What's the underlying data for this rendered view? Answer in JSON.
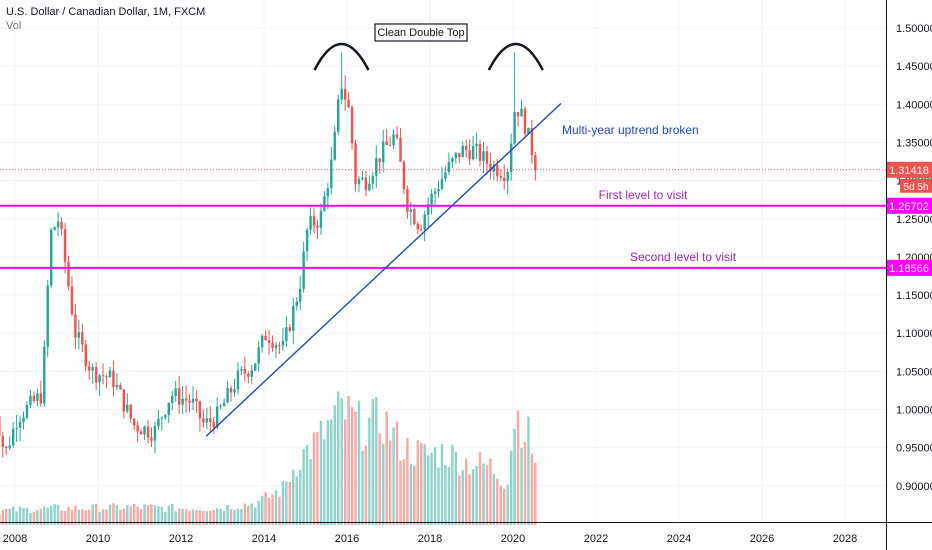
{
  "header": {
    "symbol": "U.S. Dollar / Canadian Dollar, 1M, FXCM",
    "volume_label": "Vol"
  },
  "colors": {
    "up": "#26a69a",
    "down": "#ef5350",
    "up_vol": "#8fd3cc",
    "down_vol": "#f7a9a7",
    "magenta": "#ff00ff",
    "trendline": "#1e4db7",
    "annotation_blue": "#1e4db7",
    "annotation_purple": "#9c27b0",
    "price_line": "#ef5350",
    "grid": "#f0f3fa"
  },
  "chart_data": {
    "type": "candlestick",
    "title": "U.S. Dollar / Canadian Dollar, 1M, FXCM",
    "x_ticks": [
      "2008",
      "2010",
      "2012",
      "2014",
      "2016",
      "2018",
      "2020",
      "2022",
      "2024",
      "2026",
      "2028"
    ],
    "y_ticks": [
      "1.50000",
      "1.45000",
      "1.40000",
      "1.35000",
      "1.30000",
      "1.25000",
      "1.20000",
      "1.15000",
      "1.10000",
      "1.05000",
      "1.00000",
      "0.95000",
      "0.90000"
    ],
    "ylim": [
      0.85,
      1.52
    ],
    "xlim": [
      2007.6,
      2029.3
    ],
    "current_price": "1.31418",
    "countdown": "5d 5h",
    "levels": [
      {
        "price": 1.267,
        "label": "1.26702",
        "text": "First level to visit"
      },
      {
        "price": 1.18566,
        "label": "1.18566",
        "text": "Second level to visit"
      }
    ],
    "trendline": {
      "x1": 2012.75,
      "y1": 0.965,
      "x2": 2021.3,
      "y2": 1.401
    },
    "annotations": {
      "double_top": "Clean Double Top",
      "uptrend": "Multi-year uptrend broken"
    },
    "peaks": [
      2016.0,
      2020.2
    ],
    "anchors": [
      [
        2007.6,
        1.02
      ],
      [
        2007.9,
        0.94
      ],
      [
        2008.2,
        0.99
      ],
      [
        2008.8,
        1.02
      ],
      [
        2009.0,
        1.23
      ],
      [
        2009.2,
        1.25
      ],
      [
        2009.6,
        1.1
      ],
      [
        2010.0,
        1.05
      ],
      [
        2010.5,
        1.04
      ],
      [
        2011.0,
        0.98
      ],
      [
        2011.5,
        0.97
      ],
      [
        2011.9,
        1.02
      ],
      [
        2012.4,
        1.01
      ],
      [
        2012.7,
        0.98
      ],
      [
        2013.0,
        0.99
      ],
      [
        2013.5,
        1.04
      ],
      [
        2013.9,
        1.06
      ],
      [
        2014.2,
        1.1
      ],
      [
        2014.6,
        1.08
      ],
      [
        2015.0,
        1.16
      ],
      [
        2015.2,
        1.24
      ],
      [
        2015.5,
        1.25
      ],
      [
        2015.8,
        1.33
      ],
      [
        2016.0,
        1.43
      ],
      [
        2016.2,
        1.39
      ],
      [
        2016.35,
        1.3
      ],
      [
        2016.6,
        1.3
      ],
      [
        2016.9,
        1.33
      ],
      [
        2017.3,
        1.36
      ],
      [
        2017.6,
        1.27
      ],
      [
        2017.9,
        1.24
      ],
      [
        2018.1,
        1.27
      ],
      [
        2018.5,
        1.31
      ],
      [
        2018.9,
        1.34
      ],
      [
        2019.2,
        1.34
      ],
      [
        2019.6,
        1.32
      ],
      [
        2020.0,
        1.31
      ],
      [
        2020.2,
        1.4
      ],
      [
        2020.4,
        1.38
      ],
      [
        2020.6,
        1.34
      ],
      [
        2020.7,
        1.314
      ]
    ],
    "volume_anchors": [
      [
        2007.6,
        0.1
      ],
      [
        2009.0,
        0.12
      ],
      [
        2010.0,
        0.12
      ],
      [
        2011.0,
        0.13
      ],
      [
        2012.0,
        0.12
      ],
      [
        2013.0,
        0.12
      ],
      [
        2014.0,
        0.16
      ],
      [
        2014.6,
        0.26
      ],
      [
        2015.0,
        0.48
      ],
      [
        2015.5,
        0.62
      ],
      [
        2016.0,
        0.82
      ],
      [
        2016.5,
        0.7
      ],
      [
        2017.0,
        0.75
      ],
      [
        2017.5,
        0.55
      ],
      [
        2018.0,
        0.5
      ],
      [
        2018.5,
        0.52
      ],
      [
        2019.0,
        0.45
      ],
      [
        2019.6,
        0.42
      ],
      [
        2020.0,
        0.3
      ],
      [
        2020.2,
        0.82
      ],
      [
        2020.5,
        0.65
      ],
      [
        2020.7,
        0.45
      ]
    ]
  }
}
